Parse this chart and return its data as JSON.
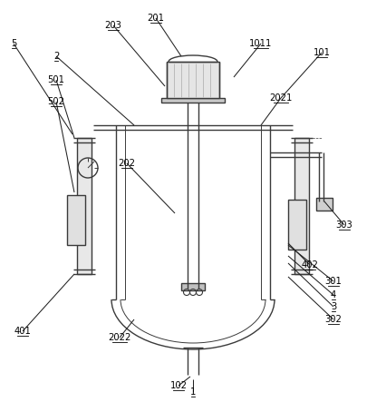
{
  "bg_color": "#ffffff",
  "line_color": "#3a3a3a",
  "line_width": 1.0,
  "fig_width": 4.26,
  "fig_height": 4.43,
  "dpi": 100,
  "label_data": [
    [
      "1",
      213,
      432,
      213,
      418,
      true
    ],
    [
      "101",
      355,
      58,
      310,
      108,
      true
    ],
    [
      "102",
      197,
      425,
      210,
      415,
      true
    ],
    [
      "1011",
      288,
      48,
      258,
      85,
      true
    ],
    [
      "2",
      62,
      62,
      148,
      138,
      true
    ],
    [
      "201",
      172,
      20,
      200,
      62,
      true
    ],
    [
      "202",
      140,
      180,
      193,
      235,
      true
    ],
    [
      "203",
      125,
      28,
      182,
      95,
      true
    ],
    [
      "2021",
      310,
      108,
      288,
      138,
      true
    ],
    [
      "2022",
      132,
      372,
      148,
      352,
      true
    ],
    [
      "3",
      368,
      338,
      318,
      290,
      true
    ],
    [
      "301",
      368,
      310,
      318,
      270,
      true
    ],
    [
      "302",
      368,
      352,
      318,
      305,
      true
    ],
    [
      "303",
      380,
      248,
      358,
      222,
      true
    ],
    [
      "4",
      368,
      325,
      318,
      282,
      true
    ],
    [
      "401",
      25,
      365,
      82,
      302,
      true
    ],
    [
      "402",
      342,
      292,
      318,
      268,
      true
    ],
    [
      "5",
      15,
      48,
      80,
      148,
      true
    ],
    [
      "501",
      62,
      88,
      82,
      152,
      true
    ],
    [
      "502",
      62,
      112,
      82,
      212,
      true
    ]
  ]
}
